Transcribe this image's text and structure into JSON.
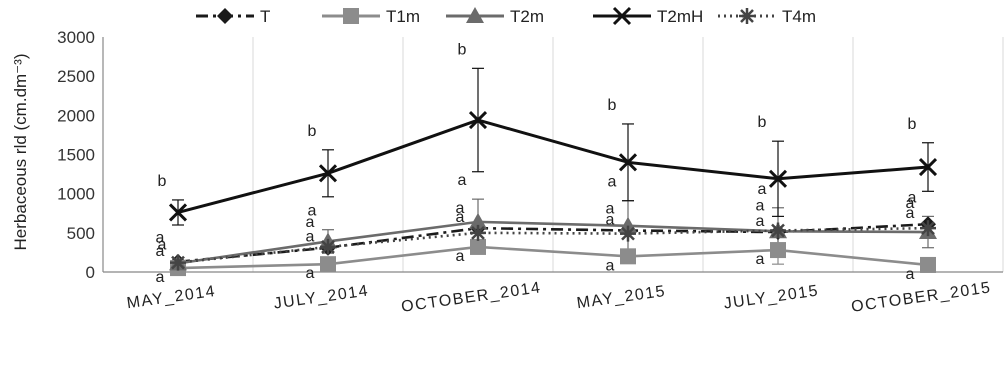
{
  "chart_data": {
    "type": "line",
    "ylabel": "Herbaceous rld (cm.dm⁻³)",
    "ylim": [
      0,
      3000
    ],
    "yticks": [
      0,
      500,
      1000,
      1500,
      2000,
      2500,
      3000
    ],
    "ytick_labels": [
      "0",
      "500",
      "1000",
      "1500",
      "2000",
      "2500",
      "3000"
    ],
    "categories": [
      "MAY_2014",
      "JULY_2014",
      "OCTOBER_2014",
      "MAY_2015",
      "JULY_2015",
      "OCTOBER_2015"
    ],
    "grid": "vertical",
    "legend_position": "top",
    "series": [
      {
        "name": "T",
        "color": "#1a1a1a",
        "style": "dashdot",
        "marker": "diamond",
        "values": [
          130,
          310,
          560,
          530,
          510,
          610
        ],
        "errors": [
          0,
          0,
          0,
          0,
          0,
          0
        ],
        "labels": [
          "a",
          "a",
          "a",
          "a",
          "a",
          "a"
        ]
      },
      {
        "name": "T1m",
        "color": "#8c8c8c",
        "style": "solid",
        "marker": "square",
        "values": [
          50,
          100,
          320,
          200,
          280,
          90
        ],
        "errors": [
          0,
          0,
          0,
          0,
          180,
          0
        ],
        "labels": [
          "a",
          "a",
          "a",
          "a",
          "a",
          "a"
        ]
      },
      {
        "name": "T2m",
        "color": "#6b6b6b",
        "style": "solid",
        "marker": "triangle",
        "values": [
          110,
          390,
          640,
          590,
          520,
          510
        ],
        "errors": [
          0,
          150,
          290,
          320,
          300,
          200
        ],
        "labels": [
          "a",
          "a",
          "a",
          "a",
          "a",
          "a"
        ]
      },
      {
        "name": "T2mH",
        "color": "#111111",
        "style": "solid",
        "marker": "x",
        "values": [
          760,
          1260,
          1940,
          1400,
          1190,
          1340
        ],
        "errors": [
          160,
          300,
          660,
          490,
          480,
          310
        ],
        "labels": [
          "b",
          "b",
          "b",
          "b",
          "b",
          "b"
        ]
      },
      {
        "name": "T4m",
        "color": "#444444",
        "style": "dotted",
        "marker": "star",
        "values": [
          120,
          320,
          500,
          490,
          530,
          560
        ],
        "errors": [
          0,
          0,
          0,
          0,
          0,
          0
        ],
        "labels": [
          "a",
          "a",
          "a",
          "a",
          "a",
          "a"
        ]
      }
    ]
  }
}
